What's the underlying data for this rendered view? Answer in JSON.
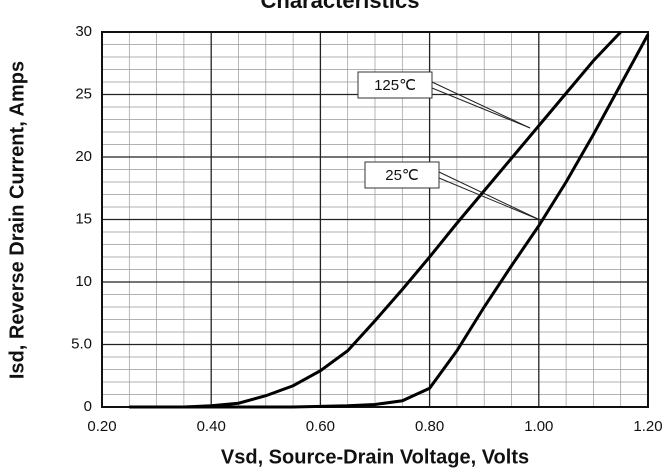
{
  "chart_data": {
    "type": "line",
    "title": "Characteristics",
    "xlabel": "Vsd, Source-Drain Voltage, Volts",
    "ylabel": "Isd, Reverse Drain Current, Amps",
    "x": [
      0.25,
      0.3,
      0.35,
      0.4,
      0.45,
      0.5,
      0.55,
      0.6,
      0.65,
      0.7,
      0.75,
      0.8,
      0.85,
      0.9,
      0.95,
      1.0,
      1.05,
      1.1,
      1.15,
      1.2
    ],
    "series": [
      {
        "name": "125℃",
        "color": "#000000",
        "values": [
          0,
          0,
          0,
          0.1,
          0.3,
          0.9,
          1.7,
          2.9,
          4.5,
          6.9,
          9.4,
          12,
          14.7,
          17.3,
          19.9,
          22.5,
          25.1,
          27.7,
          30,
          null
        ]
      },
      {
        "name": "25℃",
        "color": "#000000",
        "values": [
          0,
          0,
          0,
          0,
          0,
          0,
          0,
          0.05,
          0.1,
          0.2,
          0.5,
          1.5,
          4.5,
          8,
          11.3,
          14.5,
          18,
          21.8,
          25.8,
          29.8
        ]
      }
    ],
    "xlim": [
      0.2,
      1.2
    ],
    "xticks": [
      {
        "value": 0.2,
        "label": "0.20"
      },
      {
        "value": 0.4,
        "label": "0.40"
      },
      {
        "value": 0.6,
        "label": "0.60"
      },
      {
        "value": 0.8,
        "label": "0.80"
      },
      {
        "value": 1.0,
        "label": "1.00"
      },
      {
        "value": 1.2,
        "label": "1.20"
      }
    ],
    "ylim": [
      0,
      30
    ],
    "yticks": [
      0,
      {
        "value": 5,
        "label": "5.0"
      },
      10,
      15,
      20,
      25,
      30
    ],
    "grid": true
  }
}
